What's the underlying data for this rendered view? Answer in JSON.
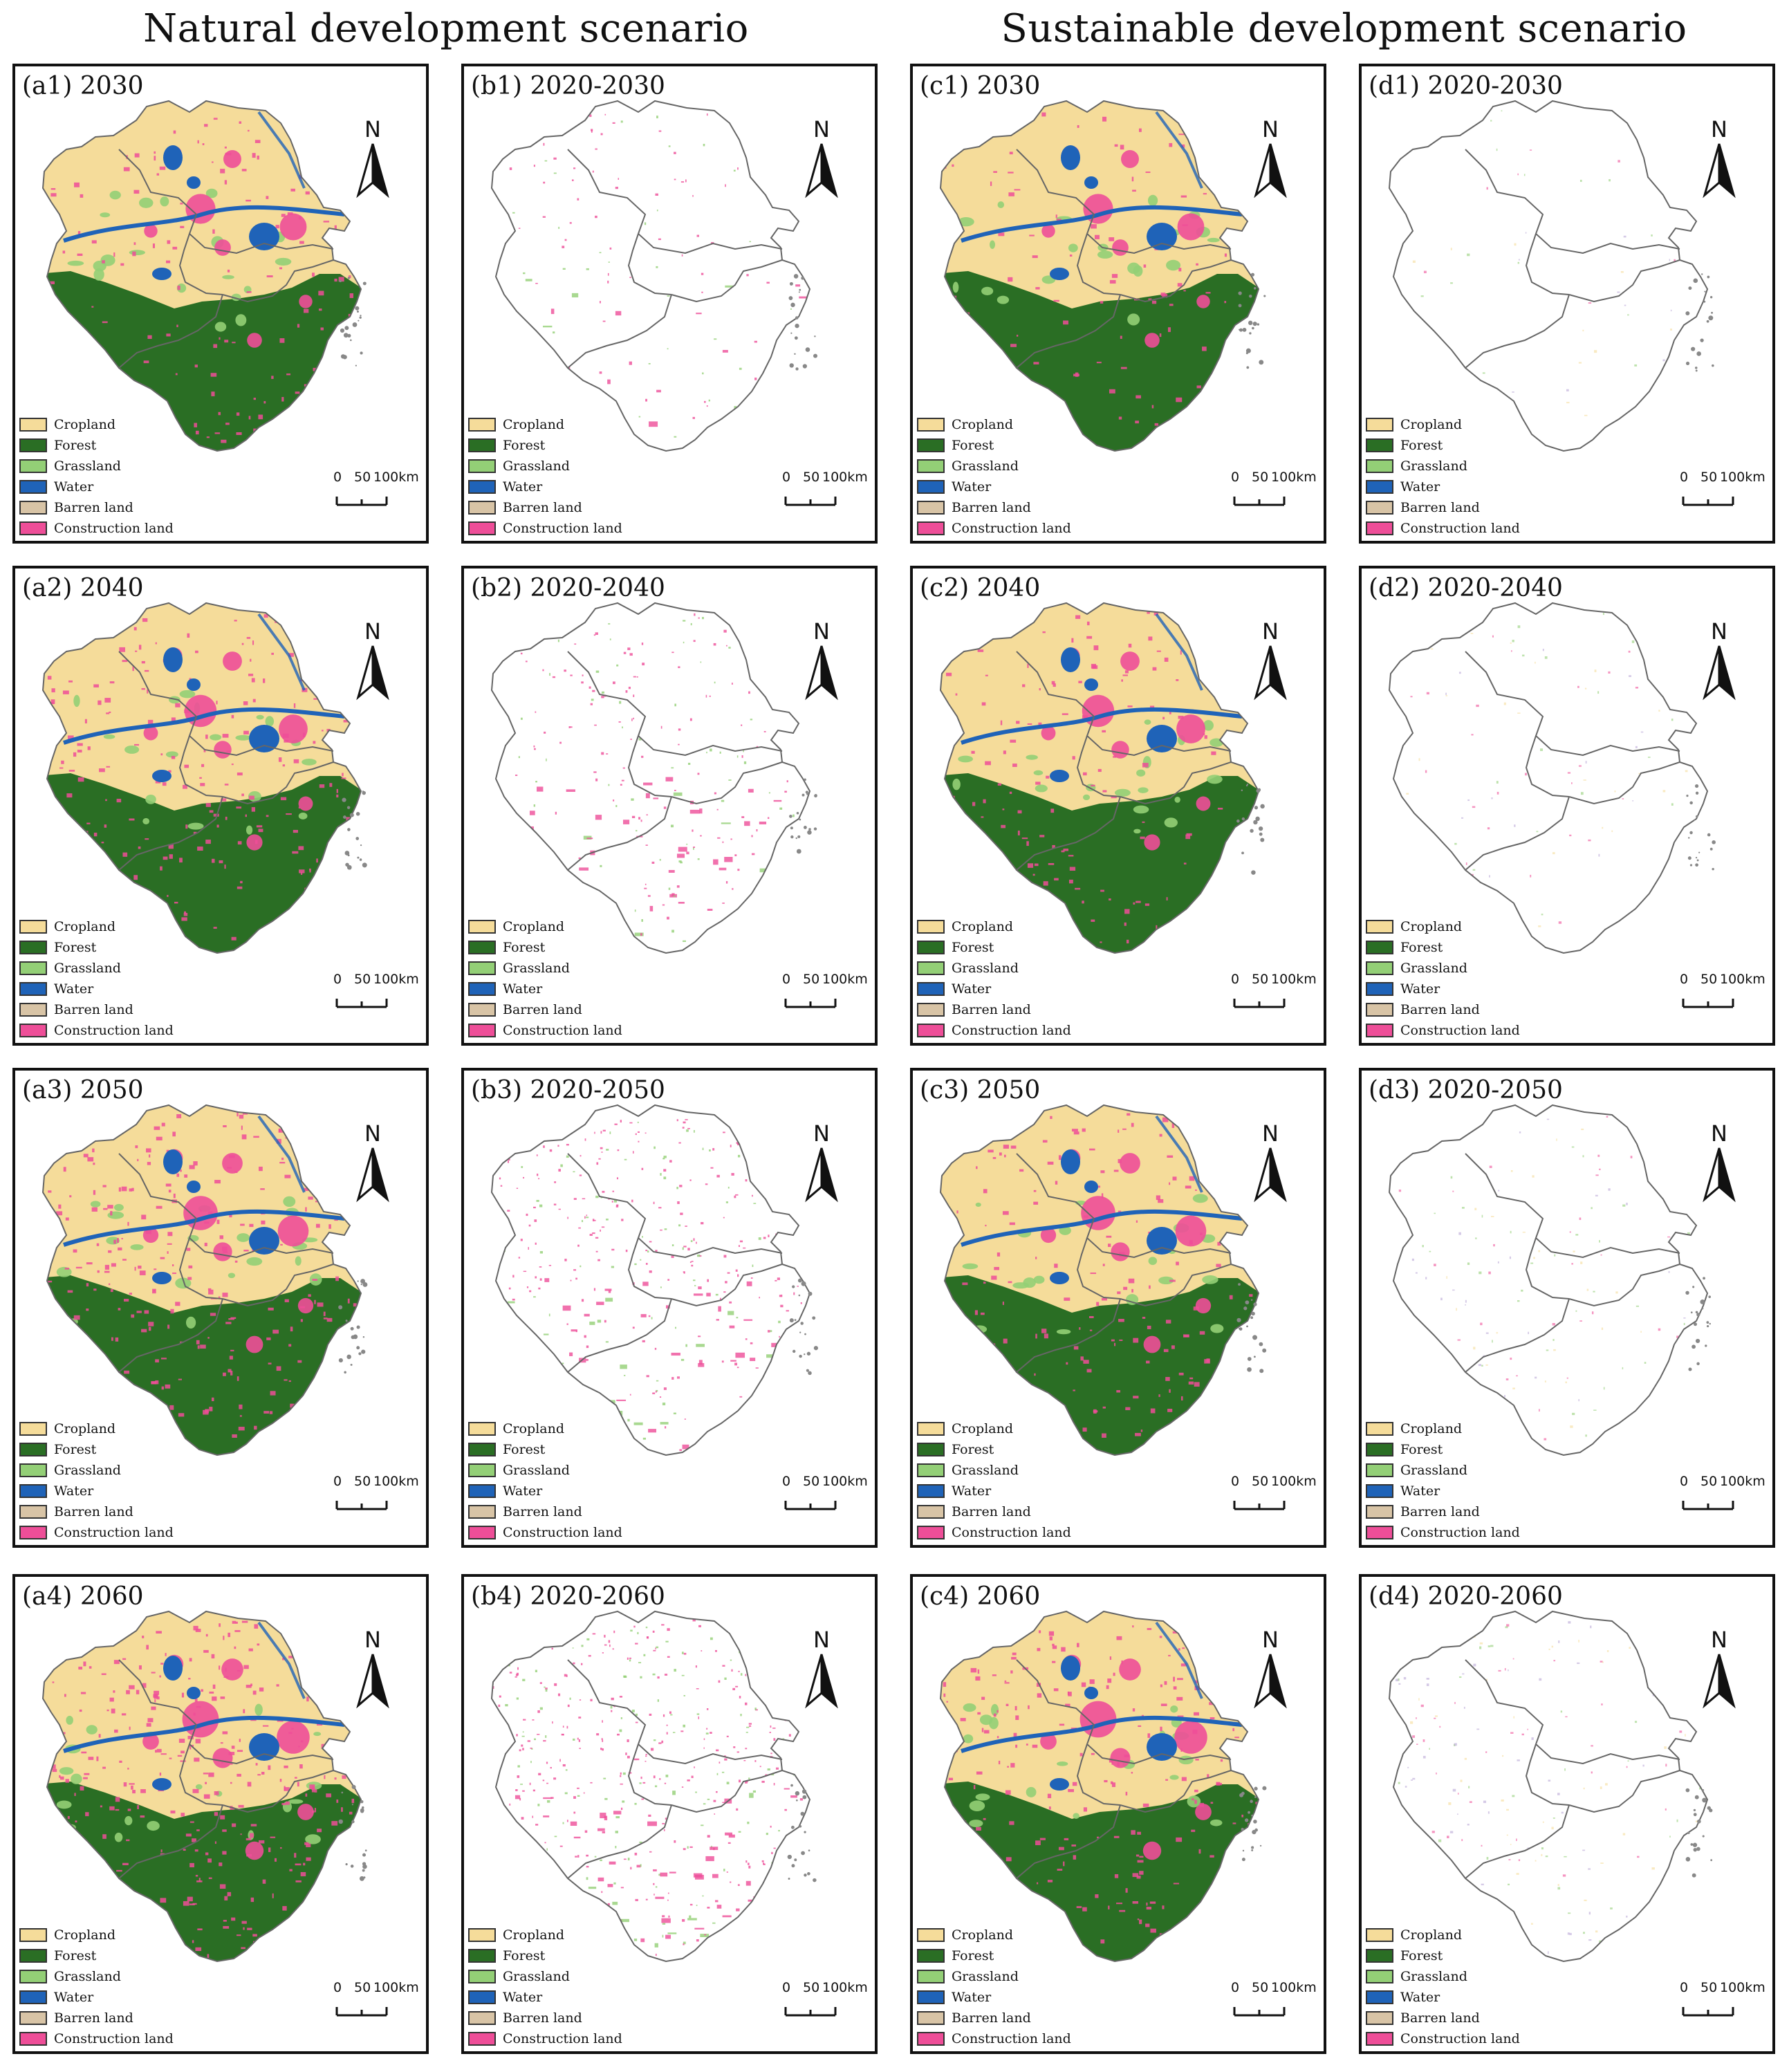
{
  "headings": {
    "natural": "Natural development scenario",
    "sustainable": "Sustainable development scenario"
  },
  "north_label": "N",
  "scale": {
    "zero": "0",
    "mid": "50",
    "end": "100km"
  },
  "legend": [
    {
      "label": "Cropland",
      "color": "#f5dc9a"
    },
    {
      "label": "Forest",
      "color": "#2a6e24"
    },
    {
      "label": "Grassland",
      "color": "#93cf76"
    },
    {
      "label": "Water",
      "color": "#1f63b8"
    },
    {
      "label": "Barren land",
      "color": "#d8c4a6"
    },
    {
      "label": "Construction land",
      "color": "#ee4e98"
    }
  ],
  "panels": [
    {
      "id": "a1",
      "label": "(a1) 2030",
      "kind": "landuse",
      "scenario": "natural",
      "level": 1
    },
    {
      "id": "b1",
      "label": "(b1) 2020-2030",
      "kind": "change",
      "scenario": "natural",
      "level": 1
    },
    {
      "id": "c1",
      "label": "(c1) 2030",
      "kind": "landuse",
      "scenario": "sustainable",
      "level": 1
    },
    {
      "id": "d1",
      "label": "(d1) 2020-2030",
      "kind": "change",
      "scenario": "sustainable",
      "level": 1
    },
    {
      "id": "a2",
      "label": "(a2) 2040",
      "kind": "landuse",
      "scenario": "natural",
      "level": 2
    },
    {
      "id": "b2",
      "label": "(b2) 2020-2040",
      "kind": "change",
      "scenario": "natural",
      "level": 2
    },
    {
      "id": "c2",
      "label": "(c2) 2040",
      "kind": "landuse",
      "scenario": "sustainable",
      "level": 2
    },
    {
      "id": "d2",
      "label": "(d2) 2020-2040",
      "kind": "change",
      "scenario": "sustainable",
      "level": 2
    },
    {
      "id": "a3",
      "label": "(a3) 2050",
      "kind": "landuse",
      "scenario": "natural",
      "level": 3
    },
    {
      "id": "b3",
      "label": "(b3) 2020-2050",
      "kind": "change",
      "scenario": "natural",
      "level": 3
    },
    {
      "id": "c3",
      "label": "(c3) 2050",
      "kind": "landuse",
      "scenario": "sustainable",
      "level": 3
    },
    {
      "id": "d3",
      "label": "(d3) 2020-2050",
      "kind": "change",
      "scenario": "sustainable",
      "level": 3
    },
    {
      "id": "a4",
      "label": "(a4) 2060",
      "kind": "landuse",
      "scenario": "natural",
      "level": 4
    },
    {
      "id": "b4",
      "label": "(b4) 2020-2060",
      "kind": "change",
      "scenario": "natural",
      "level": 4
    },
    {
      "id": "c4",
      "label": "(c4) 2060",
      "kind": "landuse",
      "scenario": "sustainable",
      "level": 4
    },
    {
      "id": "d4",
      "label": "(d4) 2020-2060",
      "kind": "change",
      "scenario": "sustainable",
      "level": 4
    }
  ]
}
